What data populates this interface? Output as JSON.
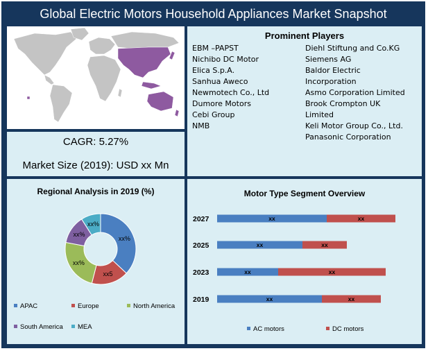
{
  "title": "Global Electric Motors Household Appliances Market Snapshot",
  "kpis": {
    "cagr": "CAGR: 5.27%",
    "market_size": "Market Size (2019): USD xx Mn"
  },
  "players": {
    "heading": "Prominent Players",
    "left": [
      "EBM –PAPST",
      "Nichibo DC Motor",
      "Elica S.p.A.",
      "Sanhua Aweco",
      "Newmotech Co., Ltd",
      "Dumore Motors",
      "Cebi Group",
      "NMB"
    ],
    "right": [
      "Diehl Stiftung and Co.KG",
      "Siemens AG",
      "Baldor Electric",
      "Incorporation",
      "Asmo Corporation Limited",
      "Brook Crompton UK",
      "Limited",
      "Keli Motor Group Co., Ltd.",
      "Panasonic Corporation"
    ]
  },
  "colors": {
    "frame": "#16365c",
    "panel": "#dbeef4",
    "map_land": "#c4c4c4",
    "map_highlight": "#8e5aa0",
    "apac": "#4a7fc1",
    "europe": "#c0504d",
    "north_america": "#9bbb59",
    "south_america": "#7e5fa0",
    "mea": "#4bacc6",
    "ac": "#4a7fc1",
    "dc": "#c0504d"
  },
  "chart_data": [
    {
      "type": "pie",
      "title": "Regional Analysis in 2019 (%)",
      "categories": [
        "APAC",
        "Europe",
        "North America",
        "South America",
        "MEA"
      ],
      "values": [
        37,
        17,
        24,
        13,
        9
      ],
      "slice_labels": [
        "xx%",
        "xx5",
        "xx%",
        "xx%",
        "xx%"
      ],
      "legend": "bottom"
    },
    {
      "type": "bar",
      "title": "Motor Type Segment Overview",
      "categories": [
        "2027",
        "2025",
        "2023",
        "2019"
      ],
      "series": [
        {
          "name": "AC motors",
          "values": [
            158,
            123,
            88,
            151
          ],
          "labels": [
            "xx",
            "xx",
            "xx",
            "xx"
          ]
        },
        {
          "name": "DC motors",
          "values": [
            99,
            64,
            155,
            85
          ],
          "labels": [
            "xx",
            "xx",
            "xx",
            "xx"
          ]
        }
      ],
      "legend": "bottom"
    }
  ]
}
